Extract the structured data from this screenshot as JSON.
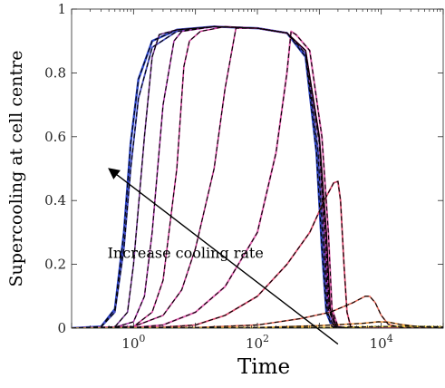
{
  "chart_data": {
    "type": "line",
    "title": "",
    "xlabel": "Time",
    "ylabel": "Supercooling at cell centre",
    "xscale": "log",
    "xlim": [
      0.1,
      100000
    ],
    "ylim": [
      0,
      1
    ],
    "x_ticks": [
      {
        "value": 1,
        "base": "10",
        "exp": "0"
      },
      {
        "value": 100,
        "base": "10",
        "exp": "2"
      },
      {
        "value": 10000,
        "base": "10",
        "exp": "4"
      }
    ],
    "y_ticks": [
      {
        "value": 0,
        "label": "0"
      },
      {
        "value": 0.2,
        "label": "0.2"
      },
      {
        "value": 0.4,
        "label": "0.4"
      },
      {
        "value": 0.6,
        "label": "0.6"
      },
      {
        "value": 0.8,
        "label": "0.8"
      },
      {
        "value": 1,
        "label": "1"
      }
    ],
    "grid": false,
    "legend": "none",
    "annotation": {
      "text": "Increase cooling rate",
      "arrow_from": {
        "x": 2000,
        "y": -0.05
      },
      "arrow_to": {
        "x": 0.4,
        "y": 0.5
      },
      "text_at": {
        "x": 0.38,
        "y": 0.22
      }
    },
    "reference_style": {
      "color": "#000000",
      "dash": "dashed"
    },
    "series": [
      {
        "color": "#2c45c8",
        "width": 2.4,
        "points": [
          [
            0.1,
            0
          ],
          [
            0.3,
            0.005
          ],
          [
            0.5,
            0.06
          ],
          [
            0.7,
            0.3
          ],
          [
            0.9,
            0.58
          ],
          [
            1.2,
            0.78
          ],
          [
            2,
            0.9
          ],
          [
            5,
            0.935
          ],
          [
            20,
            0.945
          ],
          [
            100,
            0.94
          ],
          [
            300,
            0.925
          ],
          [
            600,
            0.85
          ],
          [
            900,
            0.55
          ],
          [
            1100,
            0.25
          ],
          [
            1300,
            0.05
          ],
          [
            1600,
            0.005
          ],
          [
            3000,
            0
          ],
          [
            100000,
            0
          ]
        ]
      },
      {
        "color": "#4a4fc4",
        "width": 1.8,
        "points": [
          [
            0.1,
            0
          ],
          [
            0.3,
            0.004
          ],
          [
            0.5,
            0.05
          ],
          [
            0.7,
            0.25
          ],
          [
            0.9,
            0.5
          ],
          [
            1.2,
            0.72
          ],
          [
            2,
            0.88
          ],
          [
            5,
            0.93
          ],
          [
            20,
            0.945
          ],
          [
            100,
            0.94
          ],
          [
            300,
            0.925
          ],
          [
            600,
            0.86
          ],
          [
            950,
            0.56
          ],
          [
            1150,
            0.26
          ],
          [
            1350,
            0.05
          ],
          [
            1700,
            0.005
          ],
          [
            3000,
            0
          ],
          [
            100000,
            0
          ]
        ]
      },
      {
        "color": "#7c3c98",
        "width": 1.6,
        "points": [
          [
            0.1,
            0
          ],
          [
            0.5,
            0.004
          ],
          [
            0.8,
            0.05
          ],
          [
            1,
            0.2
          ],
          [
            1.5,
            0.6
          ],
          [
            2,
            0.85
          ],
          [
            2.6,
            0.92
          ],
          [
            5,
            0.935
          ],
          [
            20,
            0.945
          ],
          [
            100,
            0.94
          ],
          [
            300,
            0.925
          ],
          [
            600,
            0.87
          ],
          [
            1000,
            0.58
          ],
          [
            1200,
            0.28
          ],
          [
            1400,
            0.06
          ],
          [
            1800,
            0.005
          ],
          [
            3000,
            0
          ],
          [
            100000,
            0
          ]
        ]
      },
      {
        "color": "#b13bac",
        "width": 1.6,
        "points": [
          [
            0.1,
            0
          ],
          [
            0.5,
            0.003
          ],
          [
            1,
            0.02
          ],
          [
            1.5,
            0.1
          ],
          [
            2,
            0.3
          ],
          [
            3,
            0.7
          ],
          [
            4.5,
            0.9
          ],
          [
            6,
            0.93
          ],
          [
            20,
            0.945
          ],
          [
            100,
            0.94
          ],
          [
            300,
            0.925
          ],
          [
            600,
            0.87
          ],
          [
            1000,
            0.6
          ],
          [
            1250,
            0.3
          ],
          [
            1450,
            0.06
          ],
          [
            1800,
            0.005
          ],
          [
            3000,
            0
          ],
          [
            100000,
            0
          ]
        ]
      },
      {
        "color": "#cf3f9a",
        "width": 1.6,
        "points": [
          [
            0.1,
            0
          ],
          [
            1,
            0.005
          ],
          [
            2,
            0.05
          ],
          [
            3,
            0.15
          ],
          [
            5,
            0.5
          ],
          [
            6.5,
            0.82
          ],
          [
            8,
            0.9
          ],
          [
            12,
            0.93
          ],
          [
            30,
            0.945
          ],
          [
            100,
            0.94
          ],
          [
            300,
            0.925
          ],
          [
            600,
            0.87
          ],
          [
            1000,
            0.6
          ],
          [
            1300,
            0.3
          ],
          [
            1500,
            0.06
          ],
          [
            1900,
            0.005
          ],
          [
            3000,
            0
          ],
          [
            100000,
            0
          ]
        ]
      },
      {
        "color": "#c63a92",
        "width": 1.6,
        "points": [
          [
            0.1,
            0
          ],
          [
            1,
            0.005
          ],
          [
            3,
            0.04
          ],
          [
            6,
            0.12
          ],
          [
            10,
            0.25
          ],
          [
            20,
            0.5
          ],
          [
            30,
            0.75
          ],
          [
            45,
            0.94
          ],
          [
            100,
            0.94
          ],
          [
            300,
            0.925
          ],
          [
            600,
            0.87
          ],
          [
            1000,
            0.6
          ],
          [
            1300,
            0.3
          ],
          [
            1500,
            0.06
          ],
          [
            1900,
            0.005
          ],
          [
            3000,
            0
          ],
          [
            100000,
            0
          ]
        ]
      },
      {
        "color": "#e063b0",
        "width": 2.0,
        "points": [
          [
            0.1,
            0
          ],
          [
            1,
            0.002
          ],
          [
            3,
            0.01
          ],
          [
            10,
            0.05
          ],
          [
            30,
            0.13
          ],
          [
            100,
            0.3
          ],
          [
            200,
            0.55
          ],
          [
            300,
            0.8
          ],
          [
            350,
            0.93
          ],
          [
            420,
            0.92
          ],
          [
            700,
            0.87
          ],
          [
            1100,
            0.6
          ],
          [
            1400,
            0.3
          ],
          [
            1600,
            0.06
          ],
          [
            2000,
            0.005
          ],
          [
            3000,
            0
          ],
          [
            100000,
            0
          ]
        ]
      },
      {
        "color": "#dd4f72",
        "width": 1.8,
        "points": [
          [
            0.1,
            0
          ],
          [
            3,
            0.003
          ],
          [
            10,
            0.01
          ],
          [
            30,
            0.04
          ],
          [
            100,
            0.1
          ],
          [
            300,
            0.2
          ],
          [
            700,
            0.3
          ],
          [
            1200,
            0.4
          ],
          [
            1700,
            0.455
          ],
          [
            2000,
            0.46
          ],
          [
            2200,
            0.4
          ],
          [
            2500,
            0.2
          ],
          [
            2800,
            0.05
          ],
          [
            3200,
            0.005
          ],
          [
            5000,
            0
          ],
          [
            100000,
            0
          ]
        ]
      },
      {
        "color": "#e36a5a",
        "width": 1.6,
        "points": [
          [
            0.1,
            0
          ],
          [
            10,
            0.002
          ],
          [
            100,
            0.01
          ],
          [
            500,
            0.03
          ],
          [
            1500,
            0.05
          ],
          [
            3500,
            0.08
          ],
          [
            5500,
            0.1
          ],
          [
            6500,
            0.1
          ],
          [
            8000,
            0.08
          ],
          [
            10000,
            0.04
          ],
          [
            13000,
            0.012
          ],
          [
            20000,
            0.002
          ],
          [
            100000,
            0
          ]
        ]
      },
      {
        "color": "#f09a48",
        "width": 1.6,
        "points": [
          [
            0.1,
            0
          ],
          [
            100,
            0.002
          ],
          [
            1000,
            0.008
          ],
          [
            5000,
            0.015
          ],
          [
            9000,
            0.02
          ],
          [
            13000,
            0.019
          ],
          [
            20000,
            0.012
          ],
          [
            40000,
            0.005
          ],
          [
            100000,
            0.002
          ]
        ]
      },
      {
        "color": "#f3d13c",
        "width": 1.6,
        "points": [
          [
            0.1,
            0
          ],
          [
            1000,
            0.002
          ],
          [
            10000,
            0.005
          ],
          [
            30000,
            0.006
          ],
          [
            60000,
            0.005
          ],
          [
            100000,
            0.004
          ]
        ]
      }
    ]
  }
}
